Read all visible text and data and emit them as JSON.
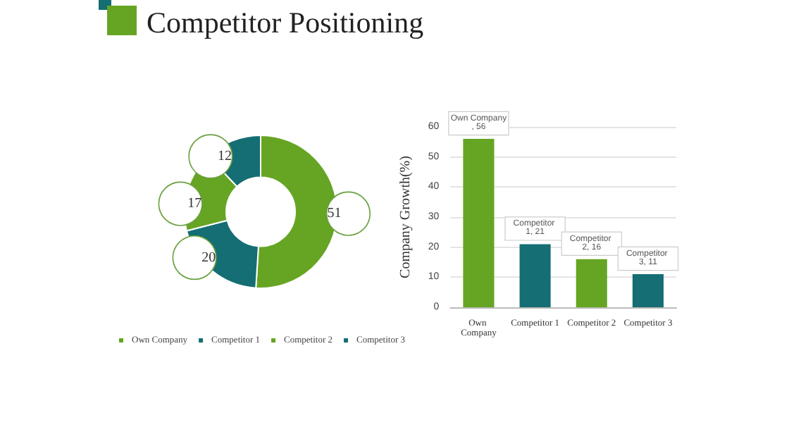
{
  "chart_data": [
    {
      "type": "donut",
      "title": "Competitor Positioning",
      "categories": [
        "Own Company",
        "Competitor 1",
        "Competitor 2",
        "Competitor 3"
      ],
      "values": [
        51,
        20,
        17,
        12
      ],
      "colors": [
        "#66a523",
        "#146e73",
        "#66a523",
        "#146e73"
      ],
      "data_labels": true,
      "legend": "bottom"
    },
    {
      "type": "bar",
      "categories": [
        "Own Company",
        "Competitor 1",
        "Competitor 2",
        "Competitor 3"
      ],
      "values": [
        56,
        21,
        16,
        11
      ],
      "colors": [
        "#66a523",
        "#146e73",
        "#66a523",
        "#146e73"
      ],
      "value_labels": [
        "Own Company, 56",
        "Competitor 1, 21",
        "Competitor 2, 16",
        "Competitor 3, 11"
      ],
      "ylabel": "Company Growth(%)",
      "ylim": [
        0,
        60
      ],
      "yticks": [
        0,
        10,
        20,
        30,
        40,
        50,
        60
      ],
      "grid": "y",
      "legend": false
    }
  ]
}
